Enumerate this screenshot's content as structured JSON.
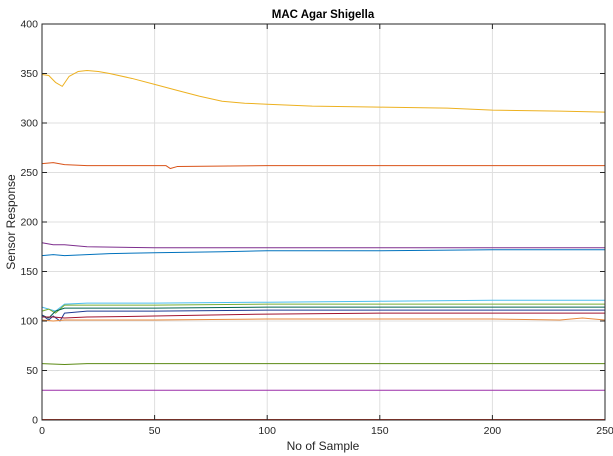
{
  "chart_data": {
    "type": "line",
    "title": "MAC Agar Shigella",
    "xlabel": "No of Sample",
    "ylabel": "Sensor Response",
    "xlim": [
      0,
      250
    ],
    "ylim": [
      0,
      400
    ],
    "xticks": [
      "0",
      "50",
      "100",
      "150",
      "200",
      "250"
    ],
    "yticks": [
      "0",
      "50",
      "100",
      "150",
      "200",
      "250",
      "300",
      "350",
      "400"
    ],
    "grid": true,
    "series": [
      {
        "color": "#EDB120",
        "x": [
          0,
          3,
          6,
          9,
          12,
          16,
          20,
          25,
          30,
          40,
          50,
          60,
          70,
          80,
          90,
          100,
          120,
          150,
          180,
          200,
          230,
          250
        ],
        "y": [
          349,
          348,
          341,
          337,
          347,
          352,
          353,
          352,
          350,
          345,
          339,
          333,
          327,
          322,
          320,
          319,
          317,
          316,
          315,
          313,
          312,
          311
        ]
      },
      {
        "color": "#D95319",
        "x": [
          0,
          5,
          10,
          20,
          40,
          55,
          57,
          60,
          100,
          150,
          200,
          250
        ],
        "y": [
          259,
          260,
          258,
          257,
          257,
          257,
          254,
          256,
          257,
          257,
          257,
          257
        ]
      },
      {
        "color": "#7E2F8E",
        "x": [
          0,
          5,
          10,
          20,
          50,
          100,
          150,
          200,
          250
        ],
        "y": [
          179,
          177,
          177,
          175,
          174,
          174,
          174,
          174,
          174
        ]
      },
      {
        "color": "#0072BD",
        "x": [
          0,
          5,
          10,
          20,
          30,
          50,
          80,
          100,
          150,
          200,
          250
        ],
        "y": [
          166,
          167,
          166,
          167,
          168,
          169,
          170,
          171,
          171,
          172,
          172
        ]
      },
      {
        "color": "#4DBEEE",
        "x": [
          0,
          3,
          6,
          10,
          20,
          50,
          100,
          150,
          200,
          250
        ],
        "y": [
          114,
          112,
          110,
          117,
          118,
          118,
          119,
          120,
          121,
          121
        ]
      },
      {
        "color": "#77AC30",
        "x": [
          0,
          3,
          6,
          10,
          20,
          50,
          100,
          150,
          200,
          250
        ],
        "y": [
          110,
          112,
          108,
          116,
          116,
          116,
          117,
          117,
          117,
          117
        ]
      },
      {
        "color": "#006450",
        "x": [
          0,
          3,
          6,
          10,
          20,
          50,
          100,
          150,
          200,
          250
        ],
        "y": [
          106,
          103,
          110,
          113,
          113,
          113,
          114,
          114,
          114,
          114
        ]
      },
      {
        "color": "#1F3A93",
        "x": [
          0,
          3,
          5,
          8,
          10,
          20,
          50,
          100,
          150,
          200,
          250
        ],
        "y": [
          106,
          101,
          105,
          100,
          108,
          110,
          110,
          111,
          111,
          111,
          111
        ]
      },
      {
        "color": "#A2142F",
        "x": [
          0,
          5,
          10,
          20,
          50,
          100,
          150,
          200,
          250
        ],
        "y": [
          104,
          104,
          103,
          104,
          105,
          107,
          108,
          108,
          108
        ]
      },
      {
        "color": "#E8893C",
        "x": [
          0,
          5,
          10,
          20,
          50,
          100,
          150,
          200,
          230,
          240,
          250
        ],
        "y": [
          101,
          100,
          101,
          101,
          101,
          102,
          102,
          102,
          101,
          103,
          101
        ]
      },
      {
        "color": "#5B8A14",
        "x": [
          0,
          10,
          20,
          100,
          250
        ],
        "y": [
          57,
          56,
          57,
          57,
          57
        ]
      },
      {
        "color": "#9B2FA8",
        "x": [
          0,
          250
        ],
        "y": [
          30,
          30
        ]
      },
      {
        "color": "#C0392B",
        "x": [
          0,
          250
        ],
        "y": [
          0.5,
          0.5
        ]
      }
    ]
  }
}
